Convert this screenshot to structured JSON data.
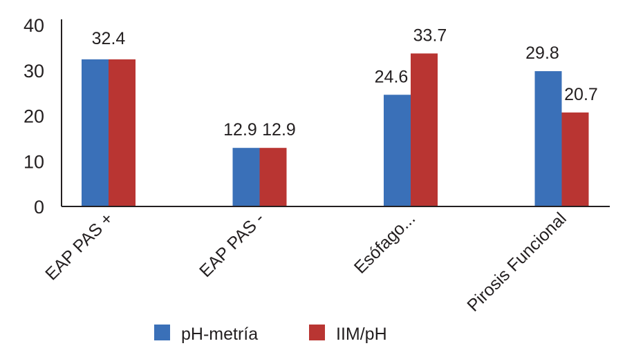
{
  "chart_data": {
    "type": "bar",
    "title": "",
    "xlabel": "",
    "ylabel": "",
    "ylim": [
      0,
      40
    ],
    "yticks": [
      "0",
      "10",
      "20",
      "30",
      "40"
    ],
    "grid": false,
    "categories": [
      "EAP PAS +",
      "EAP PAS -",
      "Esófago...",
      "Pirosis Funcional"
    ],
    "series": [
      {
        "name": "pH-metría",
        "color": "#3a70b8",
        "values": [
          32.4,
          12.9,
          24.6,
          29.8
        ],
        "labels": [
          null,
          "12.9",
          "24.6",
          "29.8"
        ]
      },
      {
        "name": "IIM/pH",
        "color": "#b93532",
        "values": [
          32.4,
          12.9,
          33.7,
          20.7
        ],
        "labels": [
          "32.4",
          "12.9",
          "33.7",
          "20.7"
        ]
      }
    ],
    "legend_position": "bottom"
  }
}
